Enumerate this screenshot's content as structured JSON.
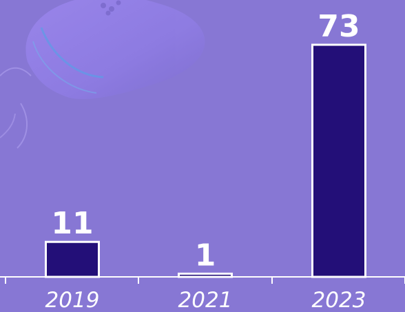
{
  "chart_data": {
    "type": "bar",
    "categories": [
      "2019",
      "2021",
      "2023"
    ],
    "values": [
      11,
      1,
      73
    ],
    "data_labels": [
      "11",
      "1",
      "73"
    ],
    "title": "",
    "xlabel": "",
    "ylabel": "",
    "ylim": [
      0,
      73
    ],
    "grid": false,
    "legend": "none"
  },
  "colors": {
    "background": "#8777d4",
    "bar_fill": "#230f78",
    "bar_stroke": "#ffffff",
    "text": "#ffffff",
    "axis": "#ffffff",
    "decoration": "#a08ee6"
  }
}
